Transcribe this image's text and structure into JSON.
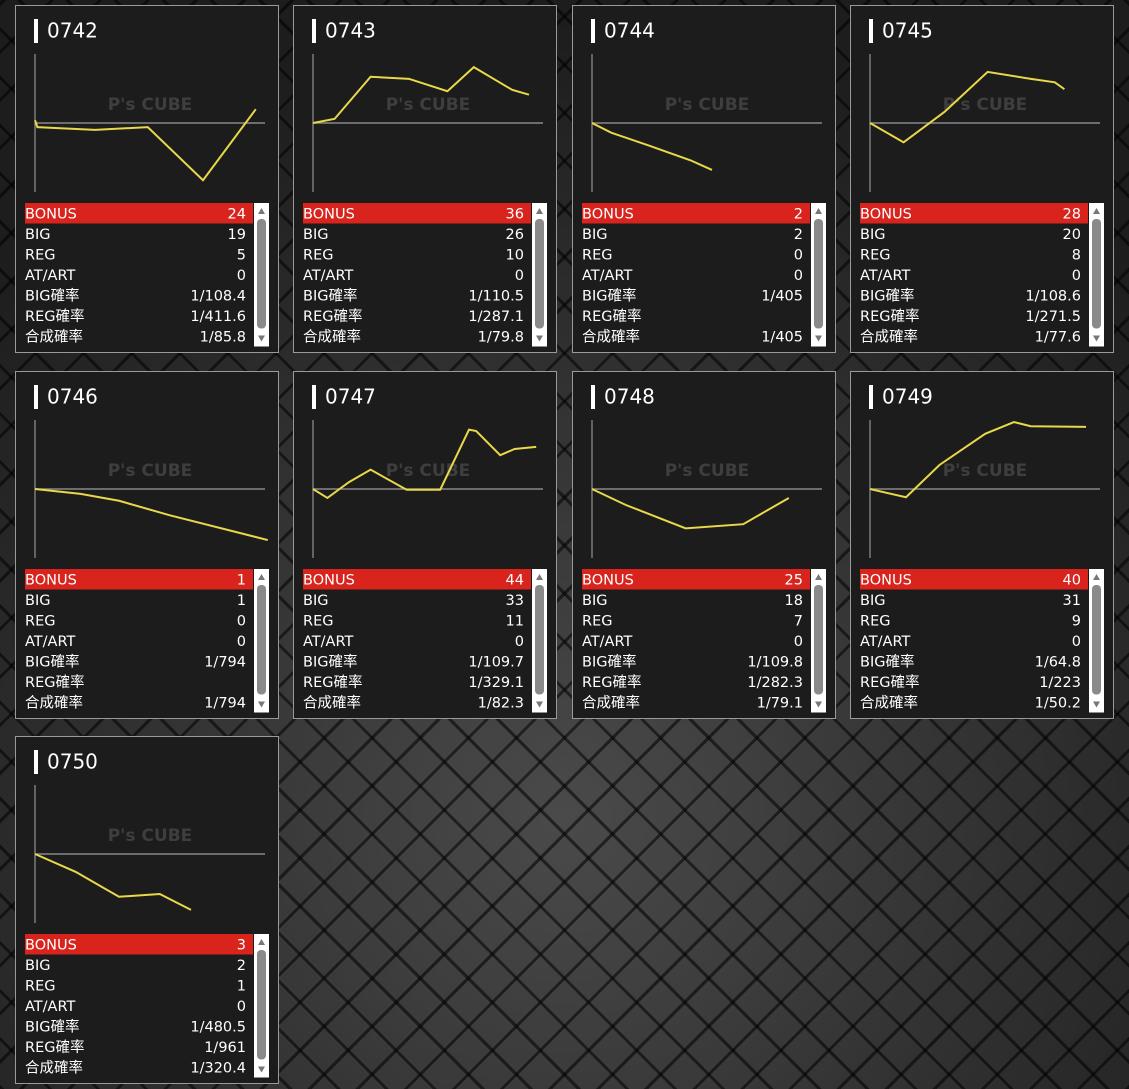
{
  "watermark": "P's CUBE",
  "row_labels": [
    "BONUS",
    "BIG",
    "REG",
    "AT/ART",
    "BIG確率",
    "REG確率",
    "合成確率"
  ],
  "graph_xlim": [
    0,
    100
  ],
  "graph_ylim": [
    -100,
    100
  ],
  "machines": [
    {
      "name": "0742",
      "graph": {
        "x": [
          0,
          1,
          25,
          47,
          70,
          92
        ],
        "values": [
          4,
          -6,
          -10,
          -6,
          -83,
          20
        ]
      },
      "stats": [
        24,
        19,
        5,
        0,
        "1/108.4",
        "1/411.6",
        "1/85.8"
      ]
    },
    {
      "name": "0743",
      "graph": {
        "x": [
          0,
          9,
          24,
          40,
          56,
          67,
          83,
          90
        ],
        "values": [
          0,
          6,
          67,
          64,
          46,
          81,
          48,
          41
        ]
      },
      "stats": [
        36,
        26,
        10,
        0,
        "1/110.5",
        "1/287.1",
        "1/79.8"
      ]
    },
    {
      "name": "0744",
      "graph": {
        "x": [
          0,
          8,
          24,
          41,
          50
        ],
        "values": [
          0,
          -14,
          -33,
          -54,
          -68
        ]
      },
      "stats": [
        2,
        2,
        0,
        0,
        "1/405",
        null,
        "1/405"
      ]
    },
    {
      "name": "0745",
      "graph": {
        "x": [
          0,
          14,
          31,
          49,
          67,
          77,
          81
        ],
        "values": [
          0,
          -28,
          16,
          74,
          64,
          59,
          49
        ]
      },
      "stats": [
        28,
        20,
        8,
        0,
        "1/108.6",
        "1/271.5",
        "1/77.6"
      ]
    },
    {
      "name": "0746",
      "graph": {
        "x": [
          0,
          19,
          35,
          56,
          97
        ],
        "values": [
          0,
          -7,
          -17,
          -38,
          -74
        ]
      },
      "stats": [
        1,
        1,
        0,
        0,
        "1/794",
        null,
        "1/794"
      ]
    },
    {
      "name": "0747",
      "graph": {
        "x": [
          0,
          6,
          15,
          24,
          39,
          53,
          65,
          68,
          78,
          84,
          93
        ],
        "values": [
          0,
          -13,
          10,
          28,
          -1,
          -1,
          86,
          84,
          49,
          58,
          61
        ]
      },
      "stats": [
        44,
        33,
        11,
        0,
        "1/109.7",
        "1/329.1",
        "1/82.3"
      ]
    },
    {
      "name": "0748",
      "graph": {
        "x": [
          0,
          14,
          39,
          63,
          82
        ],
        "values": [
          0,
          -23,
          -57,
          -51,
          -13
        ]
      },
      "stats": [
        25,
        18,
        7,
        0,
        "1/109.8",
        "1/282.3",
        "1/79.1"
      ]
    },
    {
      "name": "0749",
      "graph": {
        "x": [
          0,
          15,
          29,
          48,
          60,
          67,
          90
        ],
        "values": [
          0,
          -12,
          35,
          80,
          97,
          91,
          90
        ]
      },
      "stats": [
        40,
        31,
        9,
        0,
        "1/64.8",
        "1/223",
        "1/50.2"
      ]
    },
    {
      "name": "0750",
      "graph": {
        "x": [
          0,
          17,
          35,
          52,
          65
        ],
        "values": [
          0,
          -26,
          -62,
          -58,
          -81
        ]
      },
      "stats": [
        3,
        2,
        1,
        0,
        "1/480.5",
        "1/961",
        "1/320.4"
      ]
    }
  ]
}
